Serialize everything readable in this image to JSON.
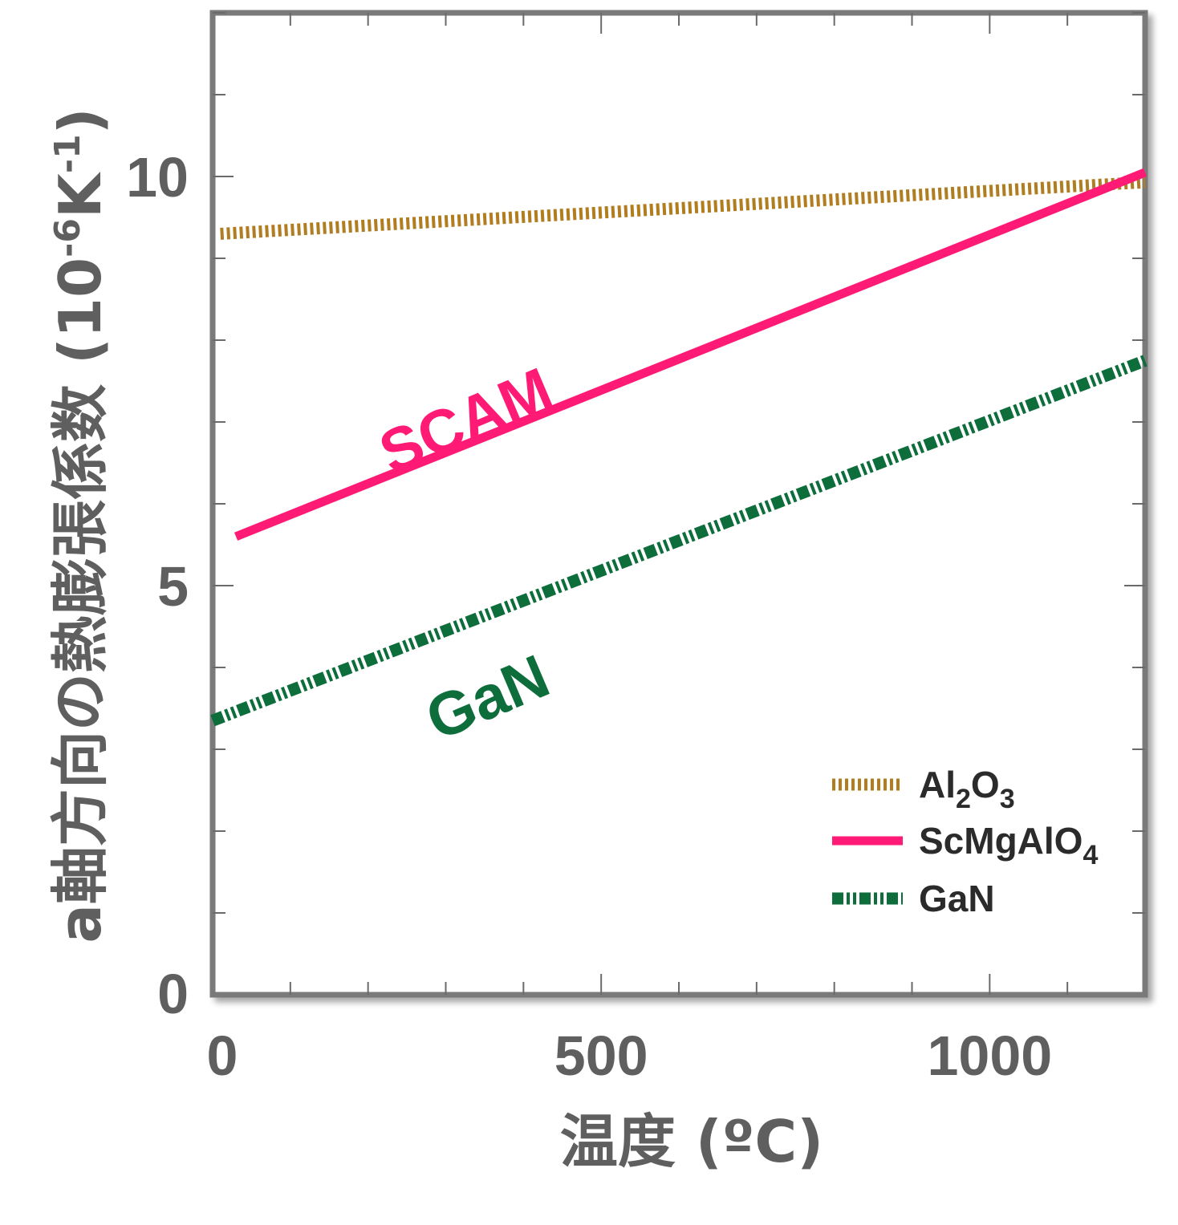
{
  "chart_data": {
    "type": "line",
    "xlabel": "温度 (ºC)",
    "ylabel": "a軸方向の熱膨張係数 (10⁻⁶K⁻¹)",
    "ylabel_parts": {
      "main": "a軸方向の熱膨張係数 (10",
      "sup1": "-6",
      "mid": "K",
      "sup2": "-1",
      "end": ")"
    },
    "xlim": [
      0,
      1200
    ],
    "ylim": [
      0,
      12
    ],
    "x_ticks": [
      0,
      500,
      1000
    ],
    "x_tick_labels": [
      "0",
      "500",
      "1000"
    ],
    "y_ticks": [
      0,
      5,
      10
    ],
    "y_tick_labels": [
      "0",
      "5",
      "10"
    ],
    "x_minor_step": 100,
    "y_minor_step": 1,
    "legend_placement": "bottom-right",
    "series": [
      {
        "name": "Al2O3",
        "legend_label": {
          "base": "Al",
          "sub1": "2",
          "mid": "O",
          "sub2": "3"
        },
        "color": "#b07d20",
        "style": "dotted",
        "x": [
          10,
          1200
        ],
        "y": [
          9.3,
          9.93
        ]
      },
      {
        "name": "ScMgAlO4",
        "legend_label": {
          "base": "ScMgAlO",
          "sub1": "4"
        },
        "color": "#ff1a75",
        "style": "solid",
        "x": [
          30,
          1200
        ],
        "y": [
          5.6,
          10.05
        ]
      },
      {
        "name": "GaN",
        "legend_label": {
          "base": "GaN"
        },
        "color": "#0d6e3c",
        "style": "dash-dot-dot",
        "x": [
          0,
          1200
        ],
        "y": [
          3.35,
          7.75
        ]
      }
    ],
    "annotations": [
      {
        "text": "SCAM",
        "color": "#ff1a75",
        "x": 230,
        "y": 6.35,
        "rotation": -23
      },
      {
        "text": "GaN",
        "color": "#0d6e3c",
        "x": 290,
        "y": 3.1,
        "rotation": -23
      }
    ]
  }
}
